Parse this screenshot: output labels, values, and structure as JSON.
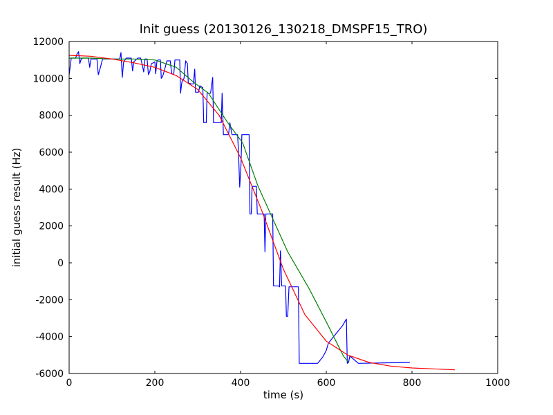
{
  "chart_data": {
    "type": "line",
    "title": "Init guess (20130126_130218_DMSPF15_TRO)",
    "xlabel": "time (s)",
    "ylabel": "initial guess result (Hz)",
    "xlim": [
      0,
      1000
    ],
    "ylim": [
      -6000,
      12000
    ],
    "xticks": [
      0,
      200,
      400,
      600,
      800,
      1000
    ],
    "yticks": [
      -6000,
      -4000,
      -2000,
      0,
      2000,
      4000,
      6000,
      8000,
      10000,
      12000
    ],
    "grid": false,
    "legend": "none",
    "series": [
      {
        "color": "#0000ff",
        "points": [
          [
            0,
            10200
          ],
          [
            5,
            11100
          ],
          [
            10,
            11100
          ],
          [
            15,
            11100
          ],
          [
            18,
            11300
          ],
          [
            22,
            11450
          ],
          [
            25,
            10800
          ],
          [
            28,
            11050
          ],
          [
            32,
            11100
          ],
          [
            45,
            11100
          ],
          [
            48,
            10600
          ],
          [
            51,
            11050
          ],
          [
            65,
            11050
          ],
          [
            68,
            10200
          ],
          [
            72,
            10500
          ],
          [
            78,
            11050
          ],
          [
            118,
            11050
          ],
          [
            121,
            11400
          ],
          [
            124,
            10050
          ],
          [
            127,
            10850
          ],
          [
            133,
            11100
          ],
          [
            145,
            11100
          ],
          [
            148,
            10400
          ],
          [
            151,
            10900
          ],
          [
            160,
            11100
          ],
          [
            167,
            11100
          ],
          [
            170,
            10800
          ],
          [
            174,
            10350
          ],
          [
            177,
            11050
          ],
          [
            182,
            11050
          ],
          [
            185,
            10200
          ],
          [
            188,
            10350
          ],
          [
            192,
            10800
          ],
          [
            197,
            10850
          ],
          [
            200,
            10900
          ],
          [
            202,
            10250
          ],
          [
            205,
            10950
          ],
          [
            208,
            11000
          ],
          [
            213,
            11000
          ],
          [
            215,
            10000
          ],
          [
            218,
            10100
          ],
          [
            222,
            10400
          ],
          [
            228,
            10950
          ],
          [
            236,
            10950
          ],
          [
            238,
            10500
          ],
          [
            240,
            10250
          ],
          [
            244,
            10200
          ],
          [
            247,
            11000
          ],
          [
            258,
            11000
          ],
          [
            260,
            9200
          ],
          [
            263,
            9800
          ],
          [
            268,
            10000
          ],
          [
            272,
            10950
          ],
          [
            276,
            10800
          ],
          [
            278,
            9750
          ],
          [
            285,
            9700
          ],
          [
            290,
            9700
          ],
          [
            293,
            10500
          ],
          [
            295,
            9250
          ],
          [
            302,
            9250
          ],
          [
            305,
            9600
          ],
          [
            312,
            9500
          ],
          [
            314,
            7600
          ],
          [
            320,
            7600
          ],
          [
            322,
            9200
          ],
          [
            330,
            9200
          ],
          [
            335,
            10050
          ],
          [
            337,
            7600
          ],
          [
            355,
            7600
          ],
          [
            357,
            9200
          ],
          [
            360,
            6950
          ],
          [
            372,
            6950
          ],
          [
            375,
            7600
          ],
          [
            380,
            6950
          ],
          [
            393,
            6950
          ],
          [
            395,
            6100
          ],
          [
            398,
            4100
          ],
          [
            401,
            5300
          ],
          [
            403,
            6950
          ],
          [
            420,
            6950
          ],
          [
            422,
            2650
          ],
          [
            425,
            2650
          ],
          [
            427,
            4150
          ],
          [
            437,
            4150
          ],
          [
            439,
            2650
          ],
          [
            455,
            2650
          ],
          [
            457,
            600
          ],
          [
            459,
            2650
          ],
          [
            475,
            2650
          ],
          [
            477,
            -1250
          ],
          [
            488,
            -1250
          ],
          [
            491,
            -1300
          ],
          [
            493,
            650
          ],
          [
            496,
            -1250
          ],
          [
            505,
            -1250
          ],
          [
            507,
            -2900
          ],
          [
            510,
            -2900
          ],
          [
            513,
            -1300
          ],
          [
            535,
            -1300
          ],
          [
            537,
            -5450
          ],
          [
            552,
            -5450
          ],
          [
            580,
            -5450
          ],
          [
            592,
            -5100
          ],
          [
            600,
            -4750
          ],
          [
            605,
            -4350
          ],
          [
            638,
            -3400
          ],
          [
            647,
            -3050
          ],
          [
            649,
            -5450
          ],
          [
            652,
            -5400
          ],
          [
            655,
            -5050
          ],
          [
            675,
            -5450
          ],
          [
            795,
            -5400
          ]
        ]
      },
      {
        "color": "#008000",
        "points": [
          [
            0,
            11100
          ],
          [
            50,
            11100
          ],
          [
            100,
            11050
          ],
          [
            150,
            11050
          ],
          [
            200,
            11000
          ],
          [
            250,
            10600
          ],
          [
            290,
            9800
          ],
          [
            325,
            9200
          ],
          [
            370,
            7600
          ],
          [
            405,
            6500
          ],
          [
            440,
            4200
          ],
          [
            470,
            2650
          ],
          [
            510,
            600
          ],
          [
            560,
            -1400
          ],
          [
            600,
            -3200
          ],
          [
            640,
            -5050
          ],
          [
            652,
            -5400
          ]
        ]
      },
      {
        "color": "#ff0000",
        "points": [
          [
            0,
            11250
          ],
          [
            50,
            11200
          ],
          [
            100,
            11050
          ],
          [
            150,
            10850
          ],
          [
            200,
            10600
          ],
          [
            250,
            10150
          ],
          [
            300,
            9400
          ],
          [
            350,
            8000
          ],
          [
            400,
            5700
          ],
          [
            450,
            2800
          ],
          [
            500,
            -350
          ],
          [
            550,
            -2800
          ],
          [
            600,
            -4250
          ],
          [
            650,
            -5000
          ],
          [
            700,
            -5400
          ],
          [
            750,
            -5600
          ],
          [
            800,
            -5700
          ],
          [
            850,
            -5750
          ],
          [
            900,
            -5800
          ]
        ]
      }
    ]
  }
}
